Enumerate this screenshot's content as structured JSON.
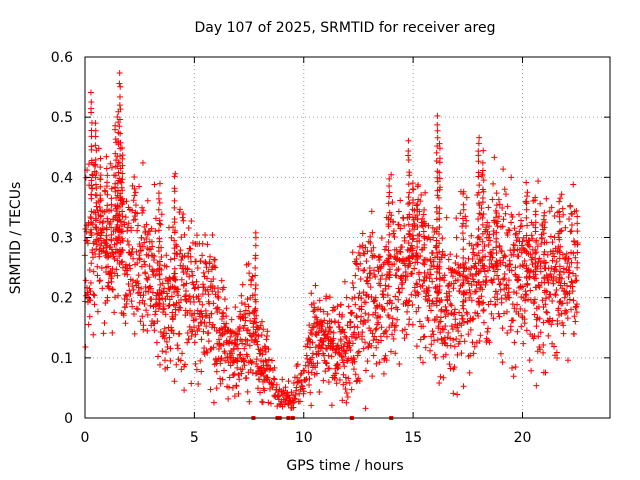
{
  "chart_data": {
    "type": "scatter",
    "title": "Day 107 of 2025, SRMTID for receiver areg",
    "xlabel": "GPS time / hours",
    "ylabel": "SRMTID / TECUs",
    "xlim": [
      0,
      24
    ],
    "ylim": [
      0,
      0.6
    ],
    "x_ticks": [
      0,
      5,
      10,
      15,
      20
    ],
    "y_ticks": [
      0,
      0.1,
      0.2,
      0.3,
      0.4,
      0.5,
      0.6
    ],
    "x_tick_labels": [
      "0",
      "5",
      "10",
      "15",
      "20"
    ],
    "y_tick_labels": [
      "0",
      "0.1",
      "0.2",
      "0.3",
      "0.4",
      "0.5",
      "0.6"
    ],
    "grid": true,
    "marker": "+",
    "color": "#ff0000",
    "series": [
      {
        "name": "SRMTID",
        "profile": [
          [
            0.0,
            0.22
          ],
          [
            0.2,
            0.3
          ],
          [
            0.5,
            0.3
          ],
          [
            1.0,
            0.27
          ],
          [
            1.5,
            0.3
          ],
          [
            2.0,
            0.26
          ],
          [
            2.5,
            0.27
          ],
          [
            3.0,
            0.24
          ],
          [
            3.5,
            0.18
          ],
          [
            4.0,
            0.21
          ],
          [
            4.5,
            0.22
          ],
          [
            5.0,
            0.19
          ],
          [
            5.5,
            0.21
          ],
          [
            6.0,
            0.15
          ],
          [
            6.5,
            0.12
          ],
          [
            7.0,
            0.11
          ],
          [
            7.5,
            0.16
          ],
          [
            8.0,
            0.11
          ],
          [
            8.5,
            0.06
          ],
          [
            9.0,
            0.04
          ],
          [
            9.5,
            0.04
          ],
          [
            10.0,
            0.07
          ],
          [
            10.5,
            0.13
          ],
          [
            11.0,
            0.12
          ],
          [
            11.5,
            0.1
          ],
          [
            12.0,
            0.12
          ],
          [
            12.5,
            0.17
          ],
          [
            13.0,
            0.2
          ],
          [
            13.5,
            0.19
          ],
          [
            14.0,
            0.23
          ],
          [
            14.5,
            0.24
          ],
          [
            15.0,
            0.27
          ],
          [
            15.5,
            0.23
          ],
          [
            16.0,
            0.2
          ],
          [
            16.5,
            0.18
          ],
          [
            17.0,
            0.19
          ],
          [
            17.5,
            0.2
          ],
          [
            18.0,
            0.23
          ],
          [
            18.5,
            0.27
          ],
          [
            19.0,
            0.25
          ],
          [
            19.5,
            0.24
          ],
          [
            20.0,
            0.22
          ],
          [
            20.5,
            0.22
          ],
          [
            21.0,
            0.21
          ],
          [
            21.5,
            0.23
          ],
          [
            22.0,
            0.22
          ],
          [
            22.5,
            0.25
          ]
        ],
        "peaks": [
          [
            0.3,
            0.54
          ],
          [
            0.5,
            0.49
          ],
          [
            0.7,
            0.42
          ],
          [
            1.0,
            0.43
          ],
          [
            1.2,
            0.38
          ],
          [
            1.5,
            0.51
          ],
          [
            1.6,
            0.57
          ],
          [
            1.7,
            0.45
          ],
          [
            1.4,
            0.49
          ],
          [
            3.4,
            0.39
          ],
          [
            4.1,
            0.41
          ],
          [
            7.8,
            0.31
          ],
          [
            13.9,
            0.4
          ],
          [
            14.8,
            0.46
          ],
          [
            15.0,
            0.39
          ],
          [
            15.2,
            0.38
          ],
          [
            15.5,
            0.35
          ],
          [
            16.1,
            0.5
          ],
          [
            16.2,
            0.46
          ],
          [
            17.3,
            0.38
          ],
          [
            18.0,
            0.47
          ],
          [
            18.2,
            0.44
          ],
          [
            18.8,
            0.37
          ],
          [
            20.2,
            0.38
          ],
          [
            20.6,
            0.37
          ],
          [
            21.0,
            0.34
          ],
          [
            21.7,
            0.36
          ],
          [
            22.5,
            0.33
          ]
        ],
        "zero_markers": [
          7.7,
          8.8,
          8.9,
          9.3,
          9.5,
          12.2,
          14.0
        ]
      }
    ]
  }
}
